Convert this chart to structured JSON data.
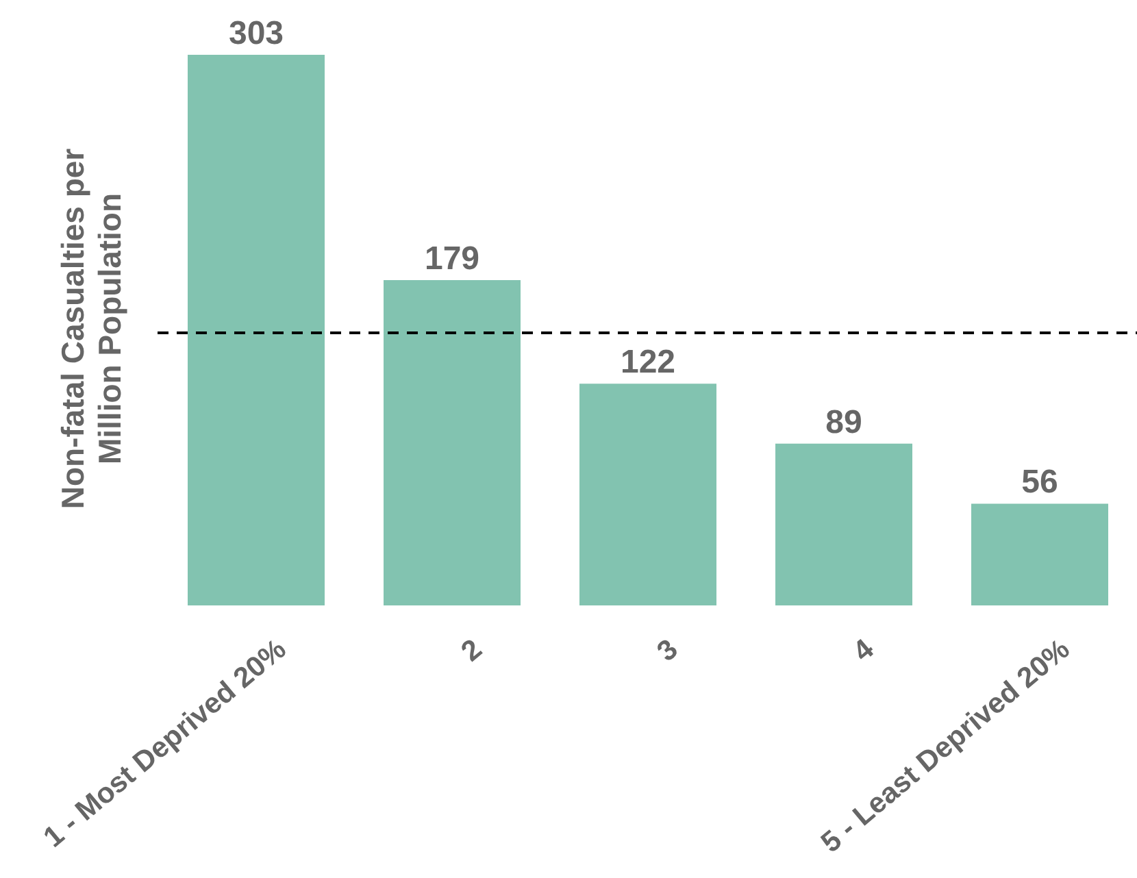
{
  "chart_data": {
    "type": "bar",
    "ylabel": "Non-fatal Casualties per Million Population",
    "categories": [
      "1 - Most Deprived 20%",
      "2",
      "3",
      "4",
      "5 - Least Deprived 20%"
    ],
    "values": [
      303,
      179,
      122,
      89,
      56
    ],
    "color": "#82c3b0",
    "data_labels": true,
    "tick_labels": "x",
    "grid": false,
    "legend": false,
    "ref_lines": [
      {
        "axis": "y",
        "value": 150,
        "color": "#000000",
        "line_style": "dashed"
      }
    ]
  }
}
